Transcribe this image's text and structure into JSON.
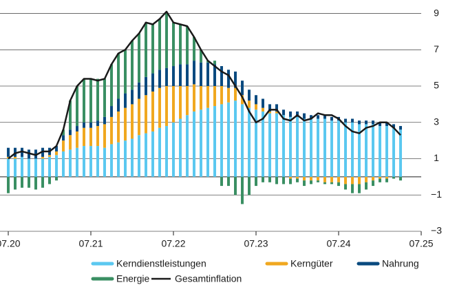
{
  "chart_data": {
    "type": "bar",
    "stacked": true,
    "categories": [
      "07.20",
      null,
      null,
      null,
      null,
      null,
      null,
      null,
      null,
      null,
      null,
      null,
      "07.21",
      null,
      null,
      null,
      null,
      null,
      null,
      null,
      null,
      null,
      null,
      null,
      "07.22",
      null,
      null,
      null,
      null,
      null,
      null,
      null,
      null,
      null,
      null,
      null,
      "07.23",
      null,
      null,
      null,
      null,
      null,
      null,
      null,
      null,
      null,
      null,
      null,
      "07.24",
      null,
      null,
      null,
      null,
      null,
      null,
      null,
      null,
      null,
      null,
      null,
      "07.25"
    ],
    "series": [
      {
        "name": "Kerndienstleistungen",
        "color": "#5bc8f0",
        "values": [
          1.0,
          1.0,
          1.1,
          1.0,
          1.0,
          1.0,
          1.1,
          1.2,
          1.4,
          1.5,
          1.6,
          1.7,
          1.7,
          1.7,
          1.6,
          1.8,
          1.9,
          2.0,
          2.1,
          2.3,
          2.4,
          2.5,
          2.7,
          2.8,
          3.0,
          3.2,
          3.4,
          3.6,
          3.7,
          3.8,
          3.9,
          4.0,
          4.1,
          4.2,
          4.0,
          3.8,
          3.7,
          3.6,
          3.5,
          3.5,
          3.4,
          3.3,
          3.3,
          3.2,
          3.2,
          3.2,
          3.2,
          3.1,
          3.1,
          3.0,
          3.0,
          2.9,
          2.9,
          2.9,
          2.8,
          2.8,
          2.7,
          2.6,
          null,
          null,
          null
        ]
      },
      {
        "name": "Kerngüter",
        "color": "#f0a820",
        "values": [
          0.1,
          0.1,
          0.0,
          0.0,
          0.0,
          0.1,
          0.1,
          0.2,
          0.6,
          0.8,
          0.9,
          1.0,
          1.0,
          1.1,
          1.3,
          1.5,
          1.7,
          1.8,
          1.9,
          2.0,
          2.1,
          2.2,
          2.2,
          2.2,
          2.0,
          1.8,
          1.6,
          1.5,
          1.3,
          1.2,
          1.1,
          1.0,
          0.8,
          0.7,
          0.5,
          0.4,
          0.3,
          0.2,
          0.1,
          0.1,
          0.0,
          -0.1,
          -0.1,
          -0.2,
          -0.2,
          -0.2,
          -0.3,
          -0.3,
          -0.3,
          -0.4,
          -0.4,
          -0.4,
          -0.3,
          -0.2,
          -0.1,
          -0.1,
          0.0,
          0.0,
          null,
          null,
          null
        ]
      },
      {
        "name": "Nahrung",
        "color": "#0a4a7f",
        "values": [
          0.5,
          0.5,
          0.5,
          0.5,
          0.5,
          0.5,
          0.4,
          0.3,
          0.3,
          0.3,
          0.3,
          0.3,
          0.3,
          0.3,
          0.4,
          0.6,
          0.7,
          0.8,
          0.8,
          0.9,
          1.0,
          1.0,
          1.0,
          1.0,
          1.1,
          1.2,
          1.2,
          1.3,
          1.3,
          1.3,
          1.2,
          1.1,
          1.0,
          0.9,
          0.8,
          0.6,
          0.5,
          0.5,
          0.4,
          0.4,
          0.3,
          0.3,
          0.3,
          0.3,
          0.2,
          0.2,
          0.2,
          0.2,
          0.2,
          0.2,
          0.2,
          0.2,
          0.2,
          0.2,
          0.2,
          0.2,
          0.2,
          0.2,
          null,
          null,
          null
        ]
      },
      {
        "name": "Energie",
        "color": "#3a8f63",
        "values": [
          -0.9,
          -0.7,
          -0.6,
          -0.6,
          -0.7,
          -0.6,
          -0.4,
          -0.2,
          0.3,
          1.6,
          2.2,
          2.4,
          2.4,
          2.3,
          2.1,
          2.3,
          2.5,
          2.4,
          2.7,
          2.7,
          3.0,
          2.7,
          2.8,
          3.0,
          2.4,
          2.2,
          2.1,
          1.3,
          0.7,
          0.1,
          0.2,
          -0.5,
          -0.5,
          -1.0,
          -1.5,
          -1.0,
          -0.5,
          -0.3,
          -0.3,
          -0.4,
          -0.4,
          -0.3,
          -0.2,
          -0.3,
          -0.2,
          -0.1,
          -0.1,
          -0.1,
          -0.2,
          -0.3,
          -0.5,
          -0.5,
          -0.4,
          -0.3,
          -0.2,
          -0.2,
          -0.1,
          -0.2,
          null,
          null,
          null
        ]
      },
      {
        "name": "Gesamtinflation",
        "color": "#1a1a1a",
        "type": "line",
        "values": [
          1.0,
          1.3,
          1.4,
          1.3,
          1.2,
          1.4,
          1.4,
          1.7,
          2.6,
          4.2,
          5.0,
          5.4,
          5.4,
          5.3,
          5.4,
          6.2,
          6.8,
          7.0,
          7.5,
          7.9,
          8.5,
          8.4,
          8.7,
          9.1,
          8.5,
          8.4,
          8.3,
          7.7,
          7.0,
          6.4,
          6.1,
          5.8,
          5.6,
          5.0,
          4.4,
          3.6,
          3.0,
          3.2,
          3.7,
          3.7,
          3.2,
          3.1,
          3.4,
          3.1,
          3.2,
          3.5,
          3.4,
          3.4,
          3.2,
          2.8,
          2.5,
          2.4,
          2.7,
          2.8,
          3.0,
          3.0,
          2.7,
          2.3,
          null,
          null,
          null
        ]
      }
    ],
    "ylim": [
      -3,
      9.4
    ],
    "yticks": [
      9,
      7,
      5,
      3,
      1,
      {
        "value": -1,
        "label": "−1"
      },
      {
        "value": -3,
        "label": "−3"
      }
    ],
    "grid": true
  }
}
